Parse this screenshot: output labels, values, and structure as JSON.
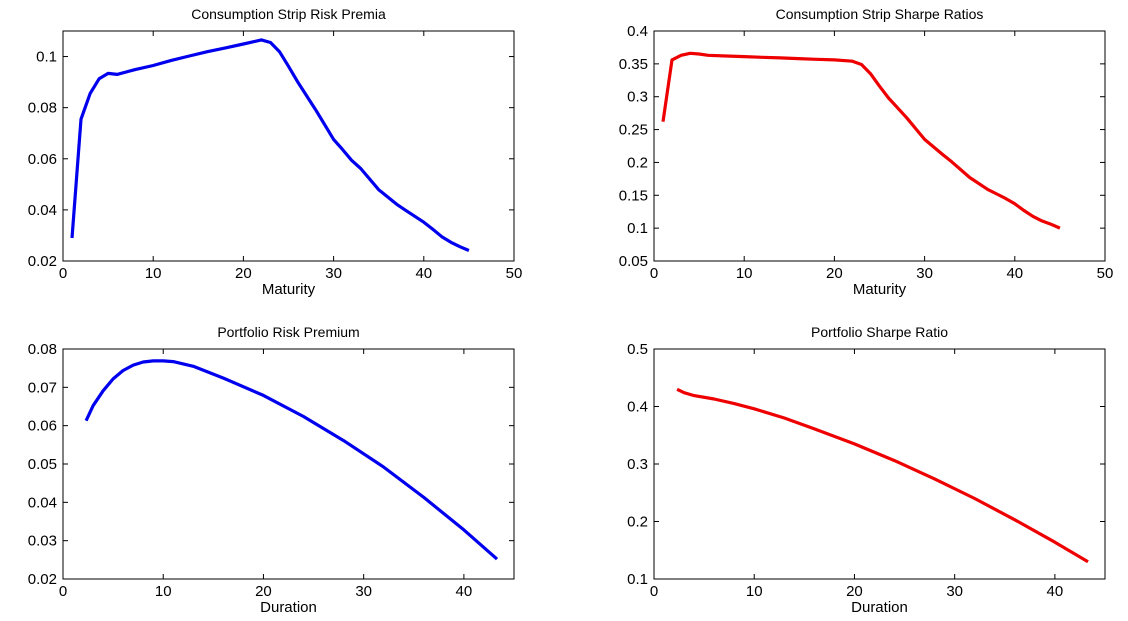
{
  "chart_data": [
    {
      "type": "line",
      "title": "Consumption Strip Risk Premia",
      "xlabel": "Maturity",
      "ylabel": "",
      "xlim": [
        0,
        50
      ],
      "ylim": [
        0.02,
        0.11
      ],
      "xticks": [
        0,
        10,
        20,
        30,
        40,
        50
      ],
      "yticks": [
        0.02,
        0.04,
        0.06,
        0.08,
        0.1
      ],
      "ytick_labels": [
        "0.02",
        "0.04",
        "0.06",
        "0.08",
        "0.1"
      ],
      "grid": false,
      "series": [
        {
          "color": "#0000ee",
          "x": [
            1,
            2,
            3,
            4,
            5,
            6,
            8,
            10,
            12,
            14,
            16,
            18,
            20,
            22,
            23,
            24,
            25,
            26,
            28,
            30,
            31,
            32,
            33,
            35,
            37,
            38,
            39,
            40,
            41,
            42,
            43,
            44,
            45
          ],
          "y": [
            0.029,
            0.0755,
            0.0855,
            0.0913,
            0.0934,
            0.093,
            0.0949,
            0.0965,
            0.0985,
            0.1002,
            0.1019,
            0.1034,
            0.1049,
            0.1065,
            0.1055,
            0.1019,
            0.0962,
            0.0902,
            0.0792,
            0.0676,
            0.0636,
            0.0594,
            0.0562,
            0.0479,
            0.0422,
            0.0398,
            0.0375,
            0.0352,
            0.0324,
            0.0295,
            0.0273,
            0.0256,
            0.0241
          ]
        }
      ]
    },
    {
      "type": "line",
      "title": "Consumption Strip Sharpe Ratios",
      "xlabel": "Maturity",
      "ylabel": "",
      "xlim": [
        0,
        50
      ],
      "ylim": [
        0.05,
        0.4
      ],
      "xticks": [
        0,
        10,
        20,
        30,
        40,
        50
      ],
      "yticks": [
        0.05,
        0.1,
        0.15,
        0.2,
        0.25,
        0.3,
        0.35,
        0.4
      ],
      "ytick_labels": [
        "0.05",
        "0.1",
        "0.15",
        "0.2",
        "0.25",
        "0.3",
        "0.35",
        "0.4"
      ],
      "grid": false,
      "series": [
        {
          "color": "#ee0000",
          "x": [
            1,
            2,
            3,
            4,
            5,
            6,
            8,
            10,
            12,
            14,
            16,
            18,
            20,
            22,
            23,
            24,
            25,
            26,
            28,
            30,
            32,
            33,
            35,
            37,
            38,
            39,
            40,
            41,
            42,
            43,
            44,
            45
          ],
          "y": [
            0.262,
            0.356,
            0.363,
            0.366,
            0.365,
            0.363,
            0.362,
            0.361,
            0.36,
            0.359,
            0.358,
            0.357,
            0.356,
            0.354,
            0.349,
            0.335,
            0.316,
            0.298,
            0.268,
            0.235,
            0.212,
            0.201,
            0.177,
            0.159,
            0.152,
            0.145,
            0.137,
            0.127,
            0.118,
            0.111,
            0.106,
            0.1
          ]
        }
      ]
    },
    {
      "type": "line",
      "title": "Portfolio Risk Premium",
      "xlabel": "Duration",
      "ylabel": "",
      "xlim": [
        0,
        45
      ],
      "ylim": [
        0.02,
        0.08
      ],
      "xticks": [
        0,
        10,
        20,
        30,
        40
      ],
      "yticks": [
        0.02,
        0.03,
        0.04,
        0.05,
        0.06,
        0.07,
        0.08
      ],
      "ytick_labels": [
        "0.02",
        "0.03",
        "0.04",
        "0.05",
        "0.06",
        "0.07",
        "0.08"
      ],
      "grid": false,
      "series": [
        {
          "color": "#0000ee",
          "x": [
            2.3,
            3,
            4,
            5,
            6,
            7,
            8,
            9,
            10,
            11,
            13,
            16,
            20,
            24,
            28,
            32,
            36,
            40,
            43.3
          ],
          "y": [
            0.0613,
            0.0652,
            0.0691,
            0.0722,
            0.0744,
            0.0758,
            0.0766,
            0.0769,
            0.0769,
            0.0767,
            0.0755,
            0.0724,
            0.0679,
            0.0624,
            0.0561,
            0.0492,
            0.0413,
            0.0328,
            0.0252
          ]
        }
      ]
    },
    {
      "type": "line",
      "title": "Portfolio Sharpe Ratio",
      "xlabel": "Duration",
      "ylabel": "",
      "xlim": [
        0,
        45
      ],
      "ylim": [
        0.1,
        0.5
      ],
      "xticks": [
        0,
        10,
        20,
        30,
        40
      ],
      "yticks": [
        0.1,
        0.2,
        0.3,
        0.4,
        0.5
      ],
      "ytick_labels": [
        "0.1",
        "0.2",
        "0.3",
        "0.4",
        "0.5"
      ],
      "grid": false,
      "series": [
        {
          "color": "#ee0000",
          "x": [
            2.3,
            3,
            4,
            6,
            8,
            10,
            13,
            16,
            20,
            24,
            28,
            32,
            36,
            40,
            43.3
          ],
          "y": [
            0.43,
            0.424,
            0.419,
            0.413,
            0.405,
            0.396,
            0.38,
            0.361,
            0.335,
            0.306,
            0.274,
            0.24,
            0.203,
            0.164,
            0.13
          ]
        }
      ]
    }
  ]
}
